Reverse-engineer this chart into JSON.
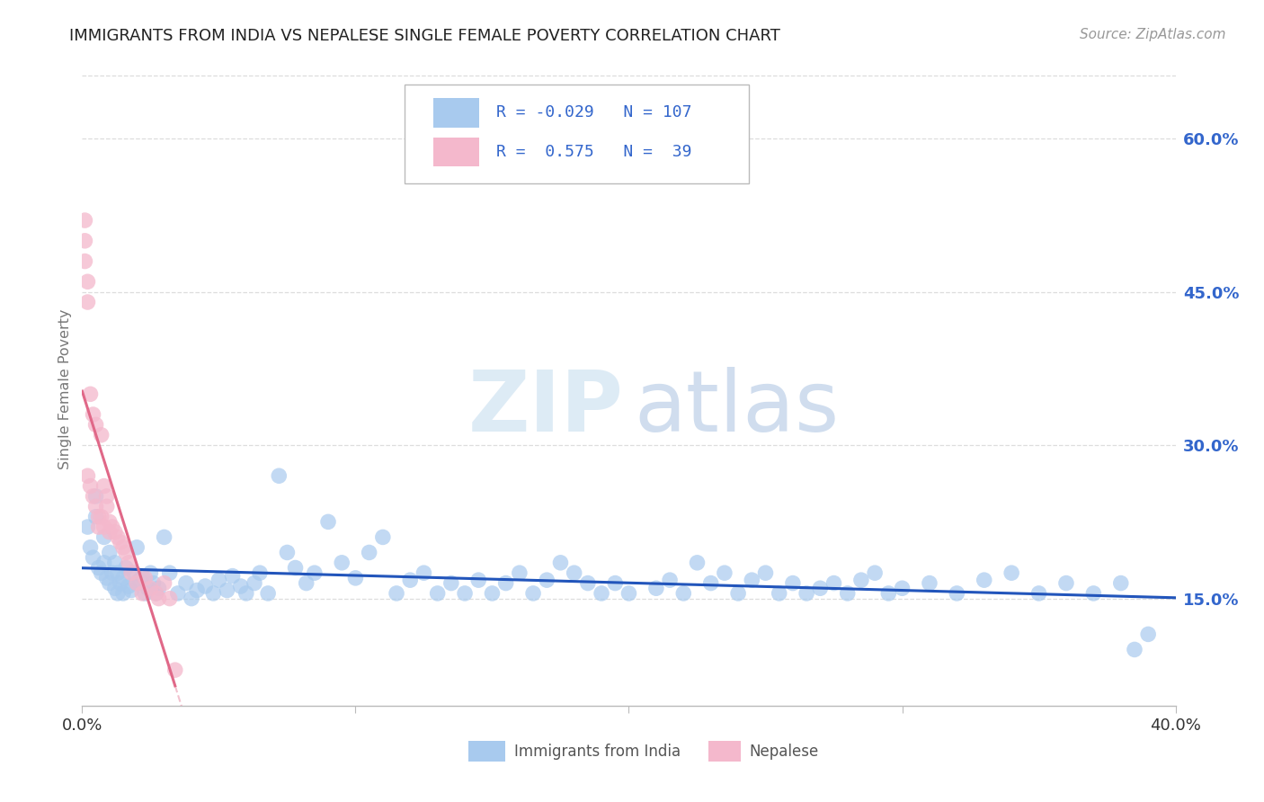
{
  "title": "IMMIGRANTS FROM INDIA VS NEPALESE SINGLE FEMALE POVERTY CORRELATION CHART",
  "source": "Source: ZipAtlas.com",
  "ylabel": "Single Female Poverty",
  "legend_r_india": "-0.029",
  "legend_n_india": "107",
  "legend_r_nepal": " 0.575",
  "legend_n_nepal": " 39",
  "xmin": 0.0,
  "xmax": 0.4,
  "ymin": 0.045,
  "ymax": 0.665,
  "yticks": [
    0.15,
    0.3,
    0.45,
    0.6
  ],
  "ytick_labels": [
    "15.0%",
    "30.0%",
    "45.0%",
    "60.0%"
  ],
  "xtick_positions": [
    0.0,
    0.1,
    0.2,
    0.3,
    0.4
  ],
  "blue_color": "#A8CAEE",
  "pink_color": "#F4B8CC",
  "blue_line_color": "#2255BB",
  "pink_line_color": "#E06888",
  "grid_color": "#DDDDDD",
  "title_color": "#222222",
  "source_color": "#999999",
  "legend_text_color": "#3366CC",
  "axis_label_color": "#3366CC",
  "ylabel_color": "#777777",
  "bottom_label_color": "#555555"
}
